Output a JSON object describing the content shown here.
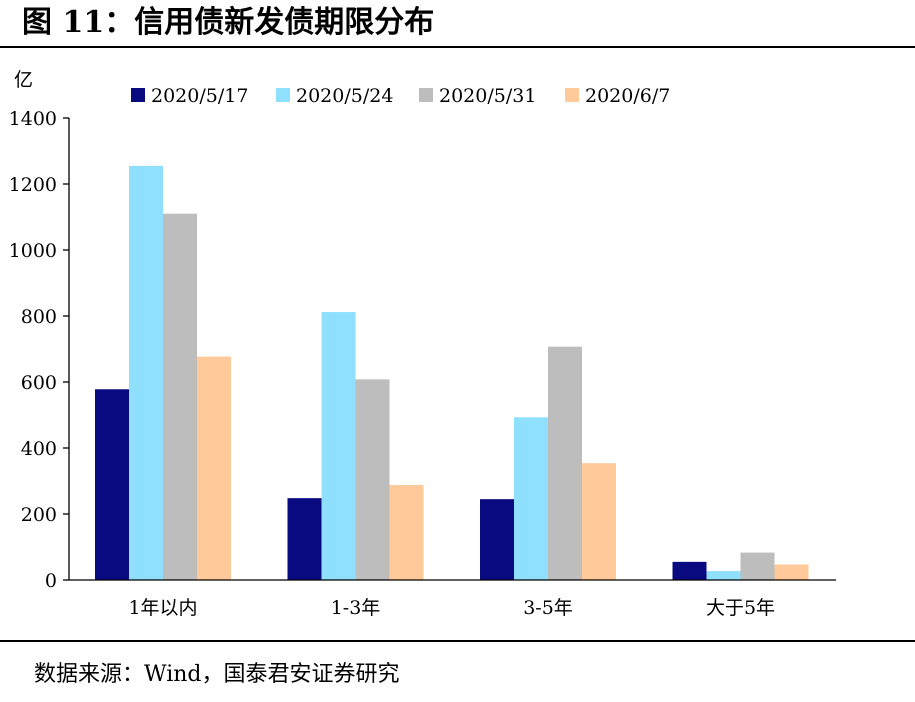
{
  "figure": {
    "title": "图 11：信用债新发债期限分布",
    "source": "数据来源：Wind，国泰君安证券研究"
  },
  "chart_data": {
    "type": "bar",
    "ylabel": "亿",
    "xlabel": "",
    "ylim": [
      0,
      1400
    ],
    "yticks": [
      0,
      200,
      400,
      600,
      800,
      1000,
      1200,
      1400
    ],
    "categories": [
      "1年以内",
      "1-3年",
      "3-5年",
      "大于5年"
    ],
    "legend_position": "top",
    "grid": false,
    "series": [
      {
        "name": "2020/5/17",
        "color": "#0a0a80",
        "values": [
          578,
          248,
          245,
          55
        ]
      },
      {
        "name": "2020/5/24",
        "color": "#8fdfff",
        "values": [
          1255,
          812,
          493,
          27
        ]
      },
      {
        "name": "2020/5/31",
        "color": "#bdbdbd",
        "values": [
          1110,
          608,
          707,
          83
        ]
      },
      {
        "name": "2020/6/7",
        "color": "#ffc999",
        "values": [
          677,
          288,
          354,
          47
        ]
      }
    ]
  }
}
